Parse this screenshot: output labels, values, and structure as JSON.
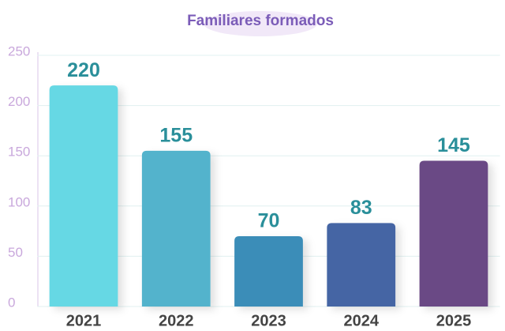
{
  "chart_data": {
    "type": "bar",
    "title": "Familiares formados",
    "categories": [
      "2021",
      "2022",
      "2023",
      "2024",
      "2025"
    ],
    "values": [
      220,
      155,
      70,
      83,
      145
    ],
    "colors": [
      "#66d8e4",
      "#52b3cc",
      "#3a8db8",
      "#4565a4",
      "#6b4a85"
    ],
    "ylim": [
      0,
      250
    ],
    "yticks": [
      0,
      50,
      100,
      150,
      200,
      250
    ],
    "grid": true
  }
}
